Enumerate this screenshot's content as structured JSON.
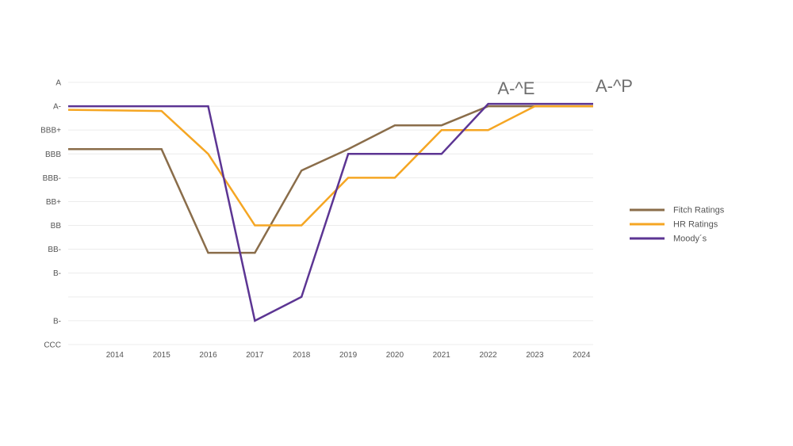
{
  "chart_data": {
    "type": "line",
    "y_categories": [
      "CCC",
      "B-",
      "",
      "B-",
      "BB-",
      "BB",
      "BB+",
      "BBB-",
      "BBB",
      "BBB+",
      "A-",
      "A"
    ],
    "x_ticks": [
      2014,
      2015,
      2016,
      2017,
      2018,
      2019,
      2020,
      2021,
      2022,
      2023,
      2024
    ],
    "xlim": [
      2013,
      2024.25
    ],
    "ylim": [
      0,
      11
    ],
    "grid": "horizontal",
    "legend_position": "right",
    "colors": {
      "Fitch Ratings": "#8a6d4a",
      "HR Ratings": "#f5a623",
      "Moody´s": "#5c3593"
    },
    "series": [
      {
        "name": "Fitch Ratings",
        "x": [
          2013,
          2015,
          2016,
          2017,
          2018,
          2019,
          2020,
          2021,
          2022,
          2023,
          2024.25
        ],
        "y": [
          8.2,
          8.2,
          3.85,
          3.85,
          7.3,
          8.2,
          9.2,
          9.2,
          10,
          10,
          10
        ]
      },
      {
        "name": "HR Ratings",
        "x": [
          2013,
          2015,
          2016,
          2017,
          2018,
          2019,
          2020,
          2021,
          2022,
          2023,
          2024.25
        ],
        "y": [
          9.85,
          9.8,
          8,
          5,
          5,
          7,
          7,
          9,
          9,
          10,
          10
        ]
      },
      {
        "name": "Moody´s",
        "x": [
          2013,
          2016,
          2017,
          2018,
          2019,
          2020,
          2021,
          2022,
          2023,
          2024.25
        ],
        "y": [
          10,
          10,
          1,
          2,
          8,
          8,
          8,
          10.1,
          10.1,
          10.1
        ]
      }
    ],
    "annotations": [
      {
        "text": "A-^E",
        "x": 2022.6,
        "y": 10.5
      },
      {
        "text": "A-^P",
        "x": 2024.7,
        "y": 10.6
      }
    ]
  }
}
